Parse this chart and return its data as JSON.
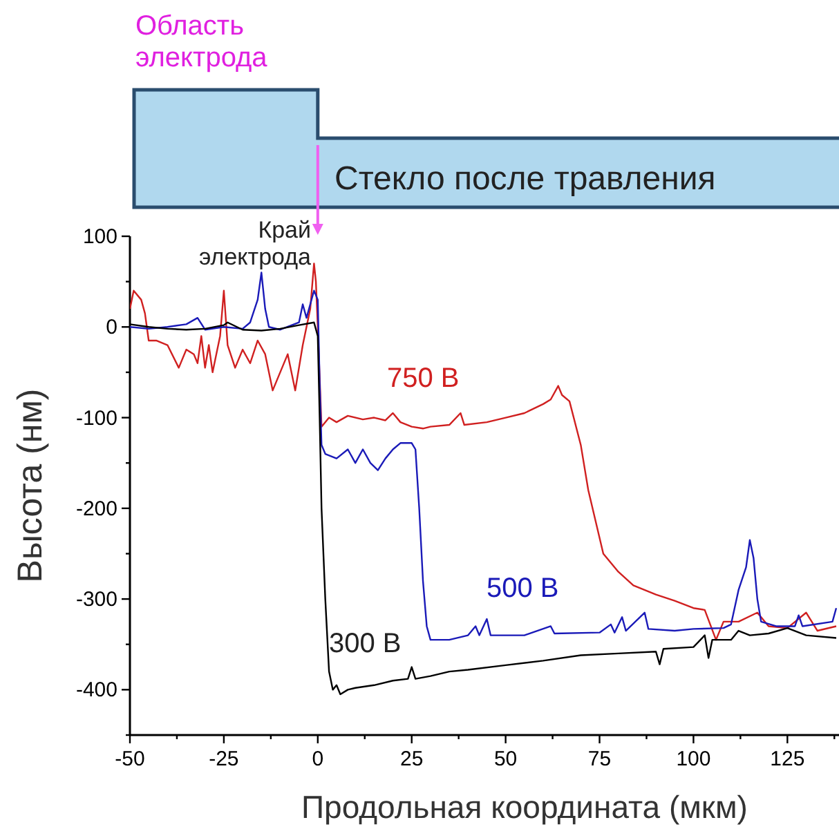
{
  "chart_data": {
    "type": "line",
    "xlabel": "Продольная координата (мкм)",
    "ylabel": "Высота (нм)",
    "xlim": [
      -50,
      138
    ],
    "ylim": [
      -450,
      100
    ],
    "xticks": [
      -50,
      {
        "value": -37.5,
        "label": null
      },
      -25,
      {
        "value": -12.5,
        "label": null
      },
      0,
      {
        "value": 12.5,
        "label": null
      },
      25,
      {
        "value": 37.5,
        "label": null
      },
      50,
      {
        "value": 62.5,
        "label": null
      },
      75,
      {
        "value": 87.5,
        "label": null
      },
      100,
      {
        "value": 112.5,
        "label": null
      },
      125,
      {
        "value": 137.5,
        "label": null
      }
    ],
    "yticks": [
      {
        "value": -450,
        "label": null
      },
      -400,
      {
        "value": -350,
        "label": null
      },
      -300,
      {
        "value": -250,
        "label": null
      },
      -200,
      {
        "value": -150,
        "label": null
      },
      -100,
      {
        "value": -50,
        "label": null
      },
      0,
      {
        "value": 50,
        "label": null
      },
      100
    ],
    "grid": false,
    "legend": false,
    "marker": "none",
    "line_style": "solid",
    "annotations": [
      "Область электрода",
      "Стекло после травления",
      "Край\nэлектрода"
    ],
    "series": [
      {
        "name": "750 В",
        "color": "#d02020",
        "x": [
          -50,
          -49,
          -47,
          -46,
          -45,
          -43,
          -40,
          -37,
          -35,
          -33,
          -32,
          -31,
          -30,
          -29,
          -28,
          -26,
          -25,
          -24,
          -22,
          -20,
          -18,
          -16,
          -14,
          -12,
          -10,
          -8,
          -6,
          -4,
          -2,
          -1,
          -0.5,
          0,
          1,
          3,
          5,
          8,
          12,
          15,
          18,
          20,
          22,
          25,
          28,
          30,
          35,
          38,
          39,
          45,
          50,
          55,
          60,
          62,
          64,
          65,
          67,
          70,
          72,
          76,
          80,
          84,
          90,
          95,
          100,
          103,
          106,
          108,
          112,
          117,
          120,
          125,
          130,
          133,
          138
        ],
        "values": [
          20,
          40,
          30,
          15,
          -15,
          -15,
          -20,
          -45,
          -25,
          -30,
          -40,
          -10,
          -45,
          -20,
          -50,
          -10,
          40,
          -20,
          -45,
          -25,
          -40,
          -15,
          -30,
          -70,
          -50,
          -30,
          -70,
          -20,
          20,
          70,
          50,
          0,
          -110,
          -100,
          -105,
          -98,
          -102,
          -100,
          -103,
          -95,
          -105,
          -110,
          -112,
          -110,
          -108,
          -95,
          -108,
          -105,
          -100,
          -95,
          -85,
          -80,
          -65,
          -75,
          -82,
          -130,
          -180,
          -250,
          -270,
          -285,
          -295,
          -302,
          -310,
          -312,
          -345,
          -325,
          -325,
          -315,
          -330,
          -332,
          -315,
          -335,
          -330
        ]
      },
      {
        "name": "500 В",
        "color": "#1a1ab8",
        "x": [
          -50,
          -45,
          -40,
          -35,
          -32,
          -30,
          -25,
          -20,
          -18,
          -16,
          -15,
          -14,
          -13,
          -10,
          -5,
          -4,
          -3,
          -1,
          0,
          0.5,
          1,
          2,
          5,
          8,
          10,
          12,
          14,
          16,
          18,
          20,
          22,
          25,
          26,
          27,
          28,
          29,
          30,
          35,
          40,
          42,
          43,
          45,
          46,
          55,
          62,
          63,
          75,
          78,
          79,
          81,
          82,
          87,
          88,
          95,
          100,
          108,
          110,
          112,
          114,
          115,
          116,
          117,
          118,
          122,
          127,
          128,
          129,
          137,
          138
        ],
        "values": [
          0,
          -2,
          0,
          3,
          10,
          -3,
          0,
          -2,
          5,
          30,
          60,
          20,
          0,
          -3,
          5,
          25,
          10,
          40,
          30,
          -60,
          -130,
          -140,
          -145,
          -135,
          -150,
          -135,
          -150,
          -158,
          -145,
          -135,
          -128,
          -128,
          -135,
          -200,
          -280,
          -330,
          -345,
          -345,
          -340,
          -330,
          -340,
          -322,
          -340,
          -340,
          -330,
          -338,
          -337,
          -328,
          -337,
          -320,
          -335,
          -315,
          -333,
          -335,
          -333,
          -332,
          -328,
          -290,
          -265,
          -235,
          -255,
          -300,
          -325,
          -330,
          -330,
          -318,
          -330,
          -325,
          -310
        ]
      },
      {
        "name": "300 В",
        "color": "#000000",
        "x": [
          -50,
          -45,
          -40,
          -35,
          -30,
          -25,
          -24,
          -20,
          -15,
          -10,
          -5,
          -1,
          0,
          0.5,
          1,
          2,
          3,
          4,
          5,
          6,
          8,
          10,
          15,
          20,
          24,
          25,
          26,
          30,
          35,
          40,
          50,
          60,
          70,
          80,
          90,
          91,
          92,
          100,
          103,
          104,
          105,
          110,
          112,
          115,
          120,
          125,
          130,
          138
        ],
        "values": [
          3,
          0,
          -2,
          -3,
          -2,
          2,
          5,
          -3,
          -4,
          -2,
          2,
          5,
          -10,
          -100,
          -200,
          -300,
          -380,
          -400,
          -395,
          -405,
          -400,
          -398,
          -395,
          -390,
          -388,
          -375,
          -388,
          -385,
          -380,
          -378,
          -373,
          -368,
          -362,
          -360,
          -358,
          -372,
          -355,
          -353,
          -340,
          -365,
          -345,
          -345,
          -335,
          -340,
          -338,
          -332,
          -340,
          -343
        ]
      }
    ]
  }
}
